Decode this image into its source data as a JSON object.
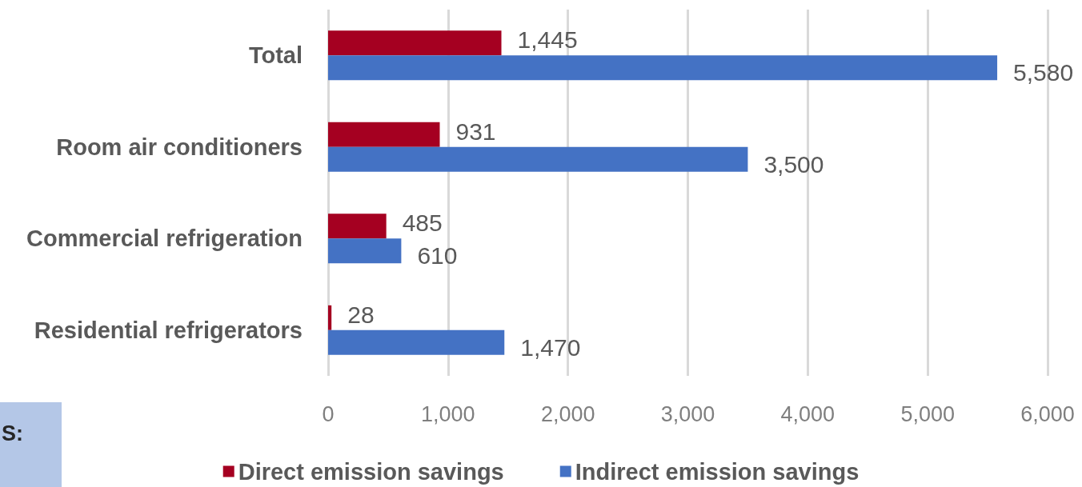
{
  "chart_data": {
    "type": "bar",
    "orientation": "horizontal",
    "categories": [
      "Total",
      "Room air conditioners",
      "Commercial refrigeration",
      "Residential refrigerators"
    ],
    "series": [
      {
        "name": "Direct emission savings",
        "color": "#a50021",
        "values": [
          1445,
          931,
          485,
          28
        ],
        "value_labels": [
          "1,445",
          "931",
          "485",
          "28"
        ]
      },
      {
        "name": "Indirect emission savings",
        "color": "#4472c4",
        "values": [
          5580,
          3500,
          610,
          1470
        ],
        "value_labels": [
          "5,580",
          "3,500",
          "610",
          "1,470"
        ]
      }
    ],
    "xlim": [
      0,
      6000
    ],
    "xticks": [
      0,
      {
        "value": 1000,
        "label": "1,000"
      },
      {
        "value": 2000,
        "label": "2,000"
      },
      {
        "value": 3000,
        "label": "3,000"
      },
      {
        "value": 4000,
        "label": "4,000"
      },
      {
        "value": 5000,
        "label": "5,000"
      },
      {
        "value": 6000,
        "label": "6,000"
      }
    ],
    "grid": "x",
    "legend": "bottom",
    "annotations": [
      "S:"
    ]
  }
}
